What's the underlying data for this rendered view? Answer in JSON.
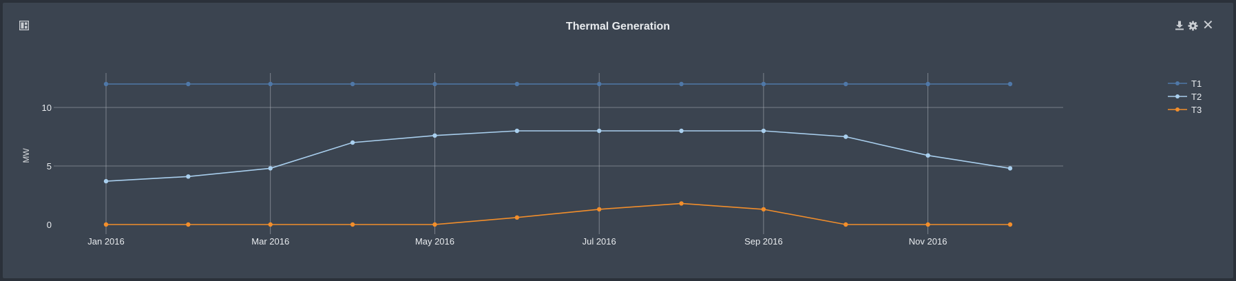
{
  "header": {
    "title": "Thermal Generation"
  },
  "toolbar": {
    "layout_icon": "layout-icon",
    "download_icon": "download-icon",
    "settings_icon": "gear-icon",
    "close_icon": "close-icon",
    "close_glyph": "✕"
  },
  "colors": {
    "background": "#3b4450",
    "grid": "#a7adb5",
    "T1": "#4f78a8",
    "T2": "#a9cfee",
    "T3": "#f28e2b"
  },
  "chart_data": {
    "type": "line",
    "x": [
      "2016-01",
      "2016-02",
      "2016-03",
      "2016-04",
      "2016-05",
      "2016-06",
      "2016-07",
      "2016-08",
      "2016-09",
      "2016-10",
      "2016-11",
      "2016-12"
    ],
    "x_tick_labels": [
      "Jan 2016",
      "Mar 2016",
      "May 2016",
      "Jul 2016",
      "Sep 2016",
      "Nov 2016"
    ],
    "y_ticks": [
      0,
      5,
      10
    ],
    "ylim": [
      0,
      12.5
    ],
    "ylabel": "MW",
    "xlabel": "",
    "grid": true,
    "legend": "right",
    "series": [
      {
        "name": "T1",
        "color": "#4f78a8",
        "values": [
          12,
          12,
          12,
          12,
          12,
          12,
          12,
          12,
          12,
          12,
          12,
          12
        ]
      },
      {
        "name": "T2",
        "color": "#a9cfee",
        "values": [
          3.7,
          4.1,
          4.8,
          7.0,
          7.6,
          8.0,
          8.0,
          8.0,
          8.0,
          7.5,
          5.9,
          4.8
        ]
      },
      {
        "name": "T3",
        "color": "#f28e2b",
        "values": [
          0,
          0,
          0,
          0,
          0,
          0.6,
          1.3,
          1.8,
          1.3,
          0,
          0,
          0
        ]
      }
    ]
  }
}
